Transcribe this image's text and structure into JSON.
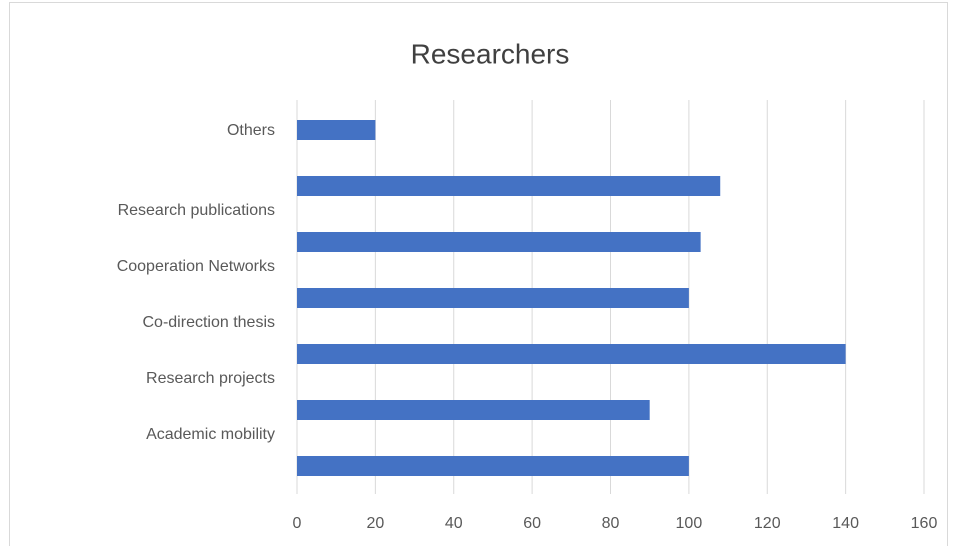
{
  "chart_data": {
    "type": "bar",
    "orientation": "horizontal",
    "title": "Researchers",
    "categories": [
      "Others",
      "Research publications",
      "Cooperation Networks",
      "Co-direction thesis",
      "Research projects",
      "Academic mobility",
      null
    ],
    "values": [
      20,
      108,
      103,
      100,
      140,
      90,
      100
    ],
    "color": "#4472c4",
    "xlim": [
      0,
      160
    ],
    "xticks": [
      0,
      20,
      40,
      60,
      80,
      100,
      120,
      140,
      160
    ],
    "grid": true
  }
}
